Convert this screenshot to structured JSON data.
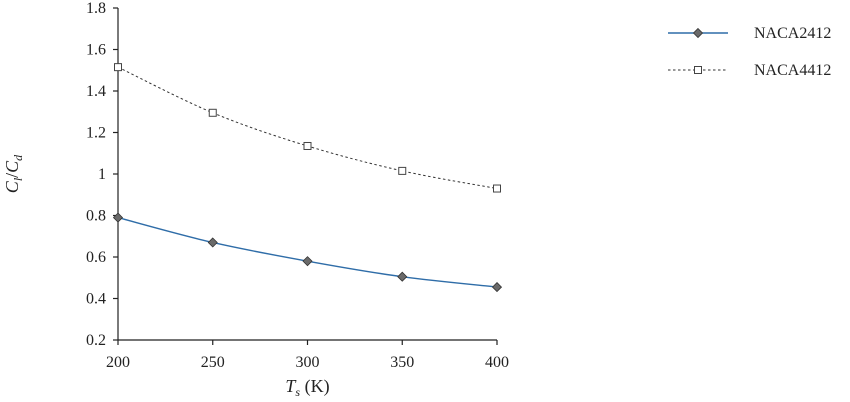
{
  "chart_data": {
    "type": "line",
    "xlabel_main": "T",
    "xlabel_sub": "s",
    "xlabel_unit": " (K)",
    "ylabel_main_1": "C",
    "ylabel_sub_1": "l",
    "ylabel_sep": "/",
    "ylabel_main_2": "C",
    "ylabel_sub_2": "d",
    "x": [
      200,
      250,
      300,
      350,
      400
    ],
    "xlim": [
      200,
      400
    ],
    "ylim": [
      0.2,
      1.8
    ],
    "xticks": [
      "200",
      "250",
      "300",
      "350",
      "400"
    ],
    "yticks": [
      "0.2",
      "0.4",
      "0.6",
      "0.8",
      "1",
      "1.2",
      "1.4",
      "1.6",
      "1.8"
    ],
    "grid": false,
    "legend_position": "top-right",
    "series": [
      {
        "name": "NACA2412",
        "values": [
          0.79,
          0.67,
          0.58,
          0.505,
          0.455
        ],
        "color": "#2f6da8",
        "marker": "diamond",
        "style": "solid"
      },
      {
        "name": "NACA4412",
        "values": [
          1.515,
          1.295,
          1.135,
          1.015,
          0.93
        ],
        "color": "#333333",
        "marker": "square",
        "style": "dotted"
      }
    ]
  }
}
